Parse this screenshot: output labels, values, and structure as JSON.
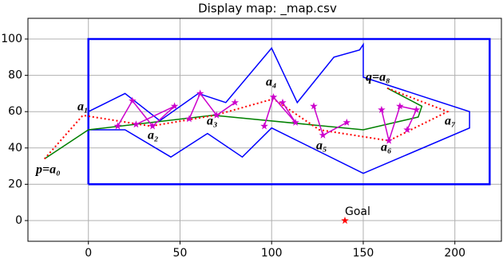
{
  "chart_data": {
    "type": "line",
    "title": "Display map: _map.csv",
    "xlim": [
      -33,
      225.4
    ],
    "ylim": [
      -11.4,
      111.4
    ],
    "xticks": [
      0,
      50,
      100,
      150,
      200
    ],
    "yticks": [
      0,
      20,
      40,
      60,
      80,
      100
    ],
    "grid": true,
    "series": [
      {
        "color": "#0000ff",
        "style": "solid",
        "width": 2.5,
        "x": [
          0,
          0,
          219,
          219,
          0
        ],
        "values": [
          20,
          100,
          100,
          20,
          20
        ]
      },
      {
        "color": "#0000ff",
        "style": "solid",
        "width": 1.5,
        "x": [
          0,
          20,
          39,
          60,
          75,
          100,
          114,
          134,
          148,
          150,
          150,
          208,
          208,
          150,
          100,
          84,
          65,
          45,
          20,
          0,
          0
        ],
        "values": [
          60,
          70,
          55,
          70,
          65,
          95,
          65,
          90,
          94,
          97,
          79,
          60,
          51,
          26,
          51,
          35,
          48,
          35,
          50,
          50,
          60
        ]
      },
      {
        "color": "#008000",
        "style": "solid",
        "width": 1.5,
        "x": [
          -24,
          0,
          68,
          150,
          180,
          182,
          163
        ],
        "values": [
          34,
          50,
          58,
          50,
          57,
          63,
          73
        ]
      },
      {
        "color": "#ff0000",
        "style": "dotted",
        "width": 2,
        "x": [
          -24,
          -3,
          34,
          69,
          101,
          126,
          164,
          196,
          163
        ],
        "values": [
          34,
          58,
          52,
          58,
          67,
          50,
          44,
          60,
          73
        ]
      },
      {
        "color": "#cc00cc",
        "style": "solid",
        "width": 1.5,
        "marker": true,
        "x": [
          16,
          24,
          35,
          47,
          26,
          null,
          55,
          61,
          70,
          80,
          null,
          96,
          101,
          113,
          106,
          null,
          123,
          128,
          141,
          null,
          160,
          164,
          170,
          179,
          174
        ],
        "values": [
          52,
          66,
          52,
          63,
          53,
          null,
          56,
          70,
          58,
          65,
          null,
          52,
          68,
          54,
          65,
          null,
          63,
          47,
          54,
          null,
          61,
          44,
          63,
          61,
          50
        ]
      },
      {
        "color": "#ff0000",
        "style": "none",
        "marker": true,
        "x": [
          140
        ],
        "values": [
          0
        ]
      }
    ],
    "annotations": [
      "p=a₀",
      "a₁",
      "a₂",
      "a₃",
      "a₄",
      "a₅",
      "a₆",
      "q=a₈",
      "a₇",
      "Goal"
    ]
  }
}
